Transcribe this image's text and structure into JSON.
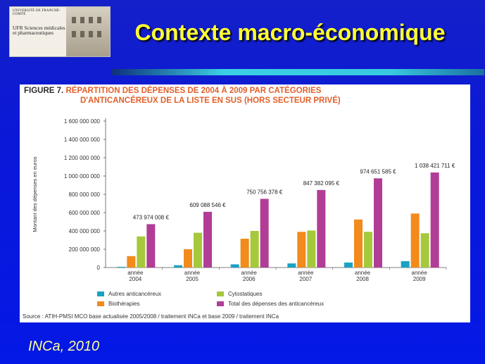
{
  "logo": {
    "university": "UNIVERSITÉ DE FRANCHE-COMTÉ",
    "ufr": "UFR Sciences médicales et pharmaceutiques"
  },
  "slide_title": "Contexte macro-économique",
  "figure": {
    "label": "FIGURE 7.",
    "title_line1": "RÉPARTITION DES DÉPENSES DE 2004 À 2009 PAR CATÉGORIES",
    "title_line2": "D'ANTICANCÉREUX DE LA LISTE EN SUS (HORS SECTEUR PRIVÉ)",
    "source": "Source : ATIH-PMSI MCO base actualisée 2005/2008 / traitement INCa et base 2009 / traitement INCa"
  },
  "footer": "INCa, 2010",
  "colors": {
    "autres": "#1aa2c4",
    "biotherapies": "#f28a1c",
    "cytostatiques": "#a6c83b",
    "total": "#b13d96"
  },
  "chart_data": {
    "type": "bar",
    "ylabel": "Montant des dépenses en euros",
    "ylim": [
      0,
      1600000000
    ],
    "yticks": [
      0,
      200000000,
      400000000,
      600000000,
      800000000,
      1000000000,
      1200000000,
      1400000000,
      1600000000
    ],
    "ytick_labels": [
      "0",
      "200 000 000",
      "400 000 000",
      "600 000 000",
      "800 000 000",
      "1 000 000 000",
      "1 200 000 000",
      "1 400 000 000",
      "1 600 000 000"
    ],
    "categories": [
      {
        "line1": "année",
        "line2": "2004"
      },
      {
        "line1": "année",
        "line2": "2005"
      },
      {
        "line1": "année",
        "line2": "2006"
      },
      {
        "line1": "année",
        "line2": "2007"
      },
      {
        "line1": "année",
        "line2": "2008"
      },
      {
        "line1": "année",
        "line2": "2009"
      }
    ],
    "series": [
      {
        "name": "Autres anticancéreux",
        "color_key": "autres",
        "values": [
          8000000,
          25000000,
          35000000,
          45000000,
          55000000,
          70000000
        ]
      },
      {
        "name": "Biothérapies",
        "color_key": "biotherapies",
        "values": [
          125000000,
          200000000,
          315000000,
          390000000,
          525000000,
          590000000
        ]
      },
      {
        "name": "Cytostatiques",
        "color_key": "cytostatiques",
        "values": [
          340000000,
          380000000,
          400000000,
          405000000,
          390000000,
          375000000
        ]
      },
      {
        "name": "Total des dépenses des anticancéreux",
        "color_key": "total",
        "values": [
          473974008,
          609088546,
          750756378,
          847382095,
          974651585,
          1038421711
        ]
      }
    ],
    "total_labels": [
      "473 974 008 €",
      "609 088 546 €",
      "750 756 378 €",
      "847 382 095 €",
      "974 651 585 €",
      "1 038 421 711 €"
    ],
    "legend": [
      {
        "name": "Autres anticancéreux",
        "color_key": "autres"
      },
      {
        "name": "Cytostatiques",
        "color_key": "cytostatiques"
      },
      {
        "name": "Biothérapies",
        "color_key": "biotherapies"
      },
      {
        "name": "Total des dépenses des anticancéreux",
        "color_key": "total"
      }
    ]
  }
}
